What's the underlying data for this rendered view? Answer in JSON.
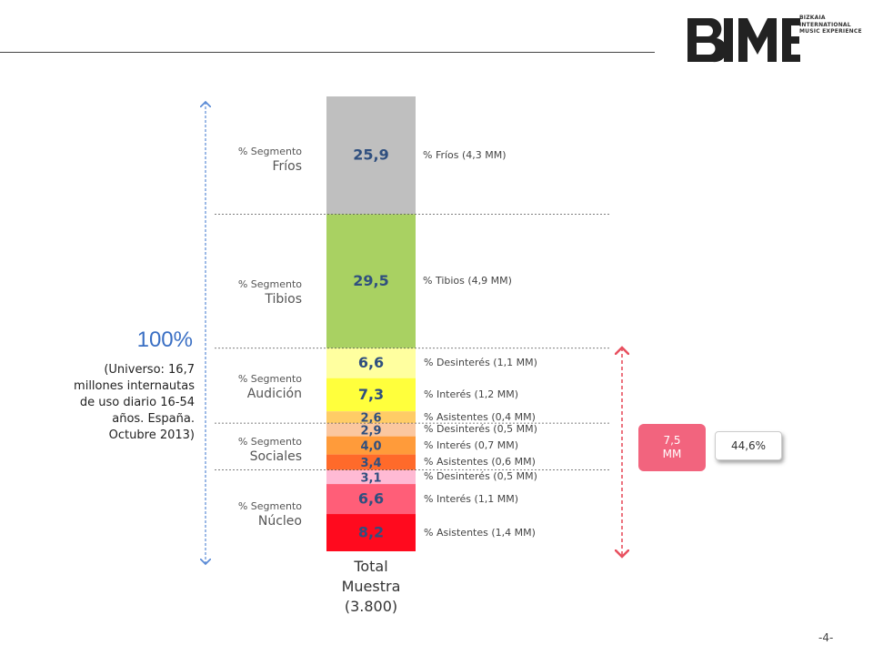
{
  "header": {
    "logo_text": "BIME",
    "logo_subtitle": [
      "BIZKAIA",
      "INTERNATIONAL",
      "MUSIC EXPERIENCE"
    ]
  },
  "chart_data": {
    "type": "bar",
    "subtype": "stacked-single",
    "category": "Total Muestra (3.800)",
    "segments": [
      {
        "value": 25.9,
        "label": "25,9",
        "right_label": "% Fríos (4,3 MM)",
        "color": "#bfbfbf"
      },
      {
        "value": 29.5,
        "label": "29,5",
        "right_label": "% Tibios (4,9 MM)",
        "color": "#a9d162"
      },
      {
        "value": 6.6,
        "label": "6,6",
        "right_label": "% Desinterés (1,1 MM)",
        "color": "#ffff9f"
      },
      {
        "value": 7.3,
        "label": "7,3",
        "right_label": "% Interés (1,2 MM)",
        "color": "#ffff3c"
      },
      {
        "value": 2.6,
        "label": "2,6",
        "right_label": "% Asistentes (0,4 MM)",
        "color": "#ffcc66"
      },
      {
        "value": 2.9,
        "label": "2,9",
        "right_label": "% Desinterés (0,5 MM)",
        "color": "#fbc79f"
      },
      {
        "value": 4.0,
        "label": "4,0",
        "right_label": "% Interés (0,7 MM)",
        "color": "#ff9b3a"
      },
      {
        "value": 3.4,
        "label": "3,4",
        "right_label": "% Asistentes (0,6 MM)",
        "color": "#ff6a2a"
      },
      {
        "value": 3.1,
        "label": "3,1",
        "right_label": "% Desinterés (0,5 MM)",
        "color": "#ffbad4"
      },
      {
        "value": 6.6,
        "label": "6,6",
        "right_label": "% Interés (1,1 MM)",
        "color": "#ff5e78"
      },
      {
        "value": 8.2,
        "label": "8,2",
        "right_label": "% Asistentes (1,4 MM)",
        "color": "#ff0a1e"
      }
    ],
    "segment_groups": [
      {
        "prefix": "% Segmento",
        "name": "Fríos"
      },
      {
        "prefix": "% Segmento",
        "name": "Tibios"
      },
      {
        "prefix": "% Segmento",
        "name": "Audición"
      },
      {
        "prefix": "% Segmento",
        "name": "Sociales"
      },
      {
        "prefix": "% Segmento",
        "name": "Núcleo"
      }
    ]
  },
  "total_label": [
    "Total",
    "Muestra",
    "(3.800)"
  ],
  "left_note": {
    "percent": "100%",
    "universe": [
      "(Universo: 16,7",
      "millones internautas",
      "de uso diario 16-54",
      "años. España.",
      "Octubre 2013)"
    ]
  },
  "callout": {
    "mm": "7,5\nMM",
    "share": "44,6%"
  },
  "colors": {
    "arrow_blue": "#5b8bd6",
    "arrow_red": "#e8505f",
    "value_text": "#2f4f7f"
  },
  "page_number": "-4-"
}
